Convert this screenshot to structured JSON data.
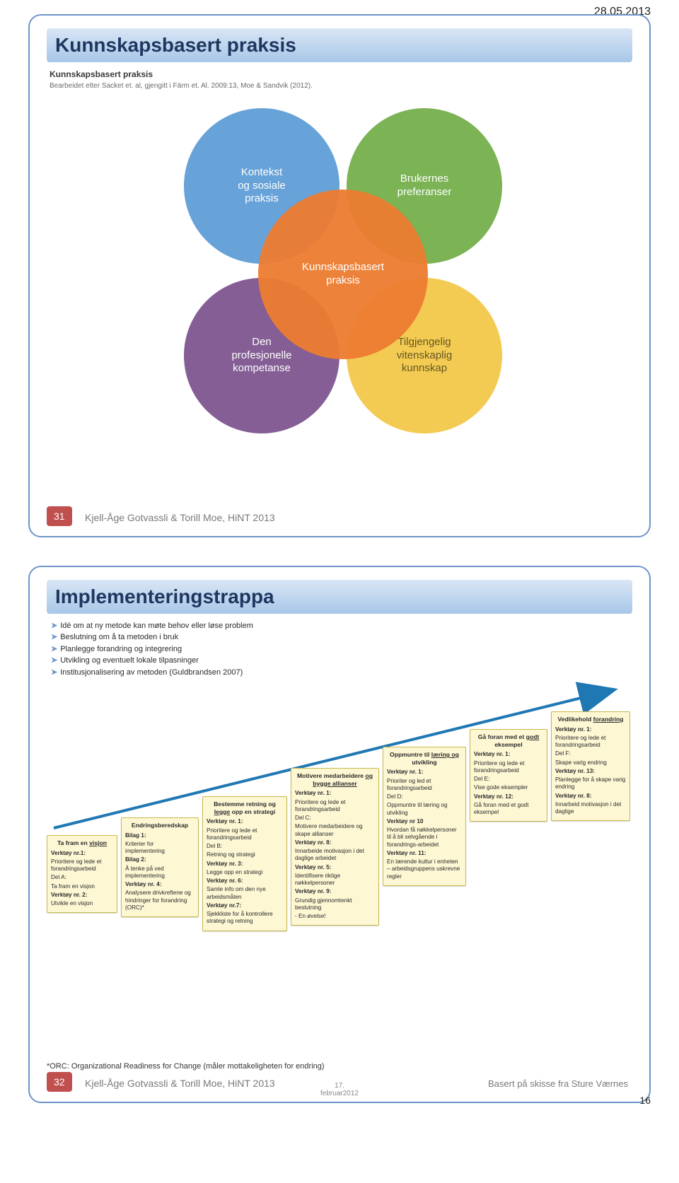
{
  "date_header": "28.05.2013",
  "pagenum": "16",
  "footer_author": "Kjell-Åge Gotvassli & Torill Moe, HiNT 2013",
  "slide1": {
    "num": "31",
    "title": "Kunnskapsbasert praksis",
    "subtitle": "Kunnskapsbasert praksis",
    "source": "Bearbeidet etter Sacket et. al, gjengitt i Färm et. Al. 2009:13, Moe & Sandvik (2012).",
    "venn": {
      "c1": {
        "label": "Kontekst\nog sosiale\npraksis",
        "color": "#5b9bd5"
      },
      "c2": {
        "label": "Brukernes\npreferanser",
        "color": "#70ad47"
      },
      "c3": {
        "label": "Den\nprofesjonelle\nkompetanse",
        "color": "#7a518c"
      },
      "c4": {
        "label": "Tilgjengelig\nvitenskaplig\nkunnskap",
        "color": "#f2c745"
      },
      "center": {
        "label": "Kunnskapsbasert\npraksis",
        "color": "#ed7d31"
      }
    }
  },
  "slide2": {
    "num": "32",
    "title": "Implementeringstrappa",
    "bullets": [
      "Idé om at ny metode kan møte behov eller løse problem",
      "Beslutning om å ta metoden i bruk",
      "Planlegge forandring og integrering",
      "Utvikling og eventuelt lokale tilpasninger",
      "Institusjonalisering av metoden (Guldbrandsen 2007)"
    ],
    "right_credit": "Basert på skisse fra Sture Værnes",
    "slide_date": "17.\nfebruar2012",
    "orc": "*ORC: Organizational Readiness for Change (måler mottakeligheten for endring)",
    "cards": {
      "c0": {
        "heading": "Ta fram en visjon",
        "body": "Verktøy nr.1:\nPrioritere og lede et forandringsarbeid\nDel A:\nTa fram en visjon\n\nVerktøy nr. 2:\nUtvikle en visjon"
      },
      "c1": {
        "heading": "Endringsberedskap",
        "body": "Bilag 1:\nKriterier for implementering\nBilag 2:\nÅ tenke på ved implementering\n\nVerktøy nr. 4:\nAnalysere drivkreftene og hindringer for forandring (ORC)*"
      },
      "c2": {
        "heading": "Bestemme retning og legge opp en strategi",
        "body": "Verktøy nr. 1:\nPrioritere og lede et forandringsarbeid\nDel B:\nRetning og strategi\n\nVerktøy nr. 3:\nLegge opp en strategi\nVerktøy nr. 6:\nSamle info om den nye arbeidsmåten\nVerktøy nr.7:\nSjekkliste for å kontrollere strategi og retning"
      },
      "c3": {
        "heading": "Motivere medarbeidere og bygge allianser",
        "body": "Verktøy nr. 1:\nPrioritere og lede et forandringsarbeid\nDel C:\nMotivere medarbeidere og skape allianser\n\nVerktøy nr. 8:\nInnarbeide motivasjon i det daglige arbeidet\nVerktøy nr. 5:\nIdentifisere riktige nøkkelpersoner\nVerktøy nr. 9:\nGrundig gjennomtenkt beslutning\n- En øvelse!"
      },
      "c4": {
        "heading": "Oppmuntre til læring og utvikling",
        "body": "Verktøy nr. 1:\nPrioriter og led et forandringsarbeid\nDel D:\nOppmuntre til læring og utvikling\n\nVerktøy nr 10\nHvordan få nøkkelpersoner til å bli selvgående i forandrings-arbeidet\n\nVerktøy nr. 11:\nEn lærende kultur i enheten – arbeidsgruppens uskrevne regler"
      },
      "c5": {
        "heading": "Gå foran med et godt eksempel",
        "body": "Verktøy nr. 1:\nPrioritere og lede et forandringsarbeid\nDel E:\nVise gode eksempler\n\nVerktøy nr. 12:\nGå foran med et godt eksempel"
      },
      "c6": {
        "heading": "Vedlikehold forandring",
        "body": "Verktøy nr. 1:\nPrioritere og lede et forandringsarbeid\nDel F:\nSkape varig endring\n\nVerktøy nr. 13:\nPlanlegge for å skape varig endring\nVerktøy nr. 8:\nInnarbeid motivasjon i det daglige"
      }
    },
    "card_style": {
      "bg": "#fdf7d4",
      "border": "#c9b84f"
    },
    "arrow_color": "#1f78b4"
  }
}
